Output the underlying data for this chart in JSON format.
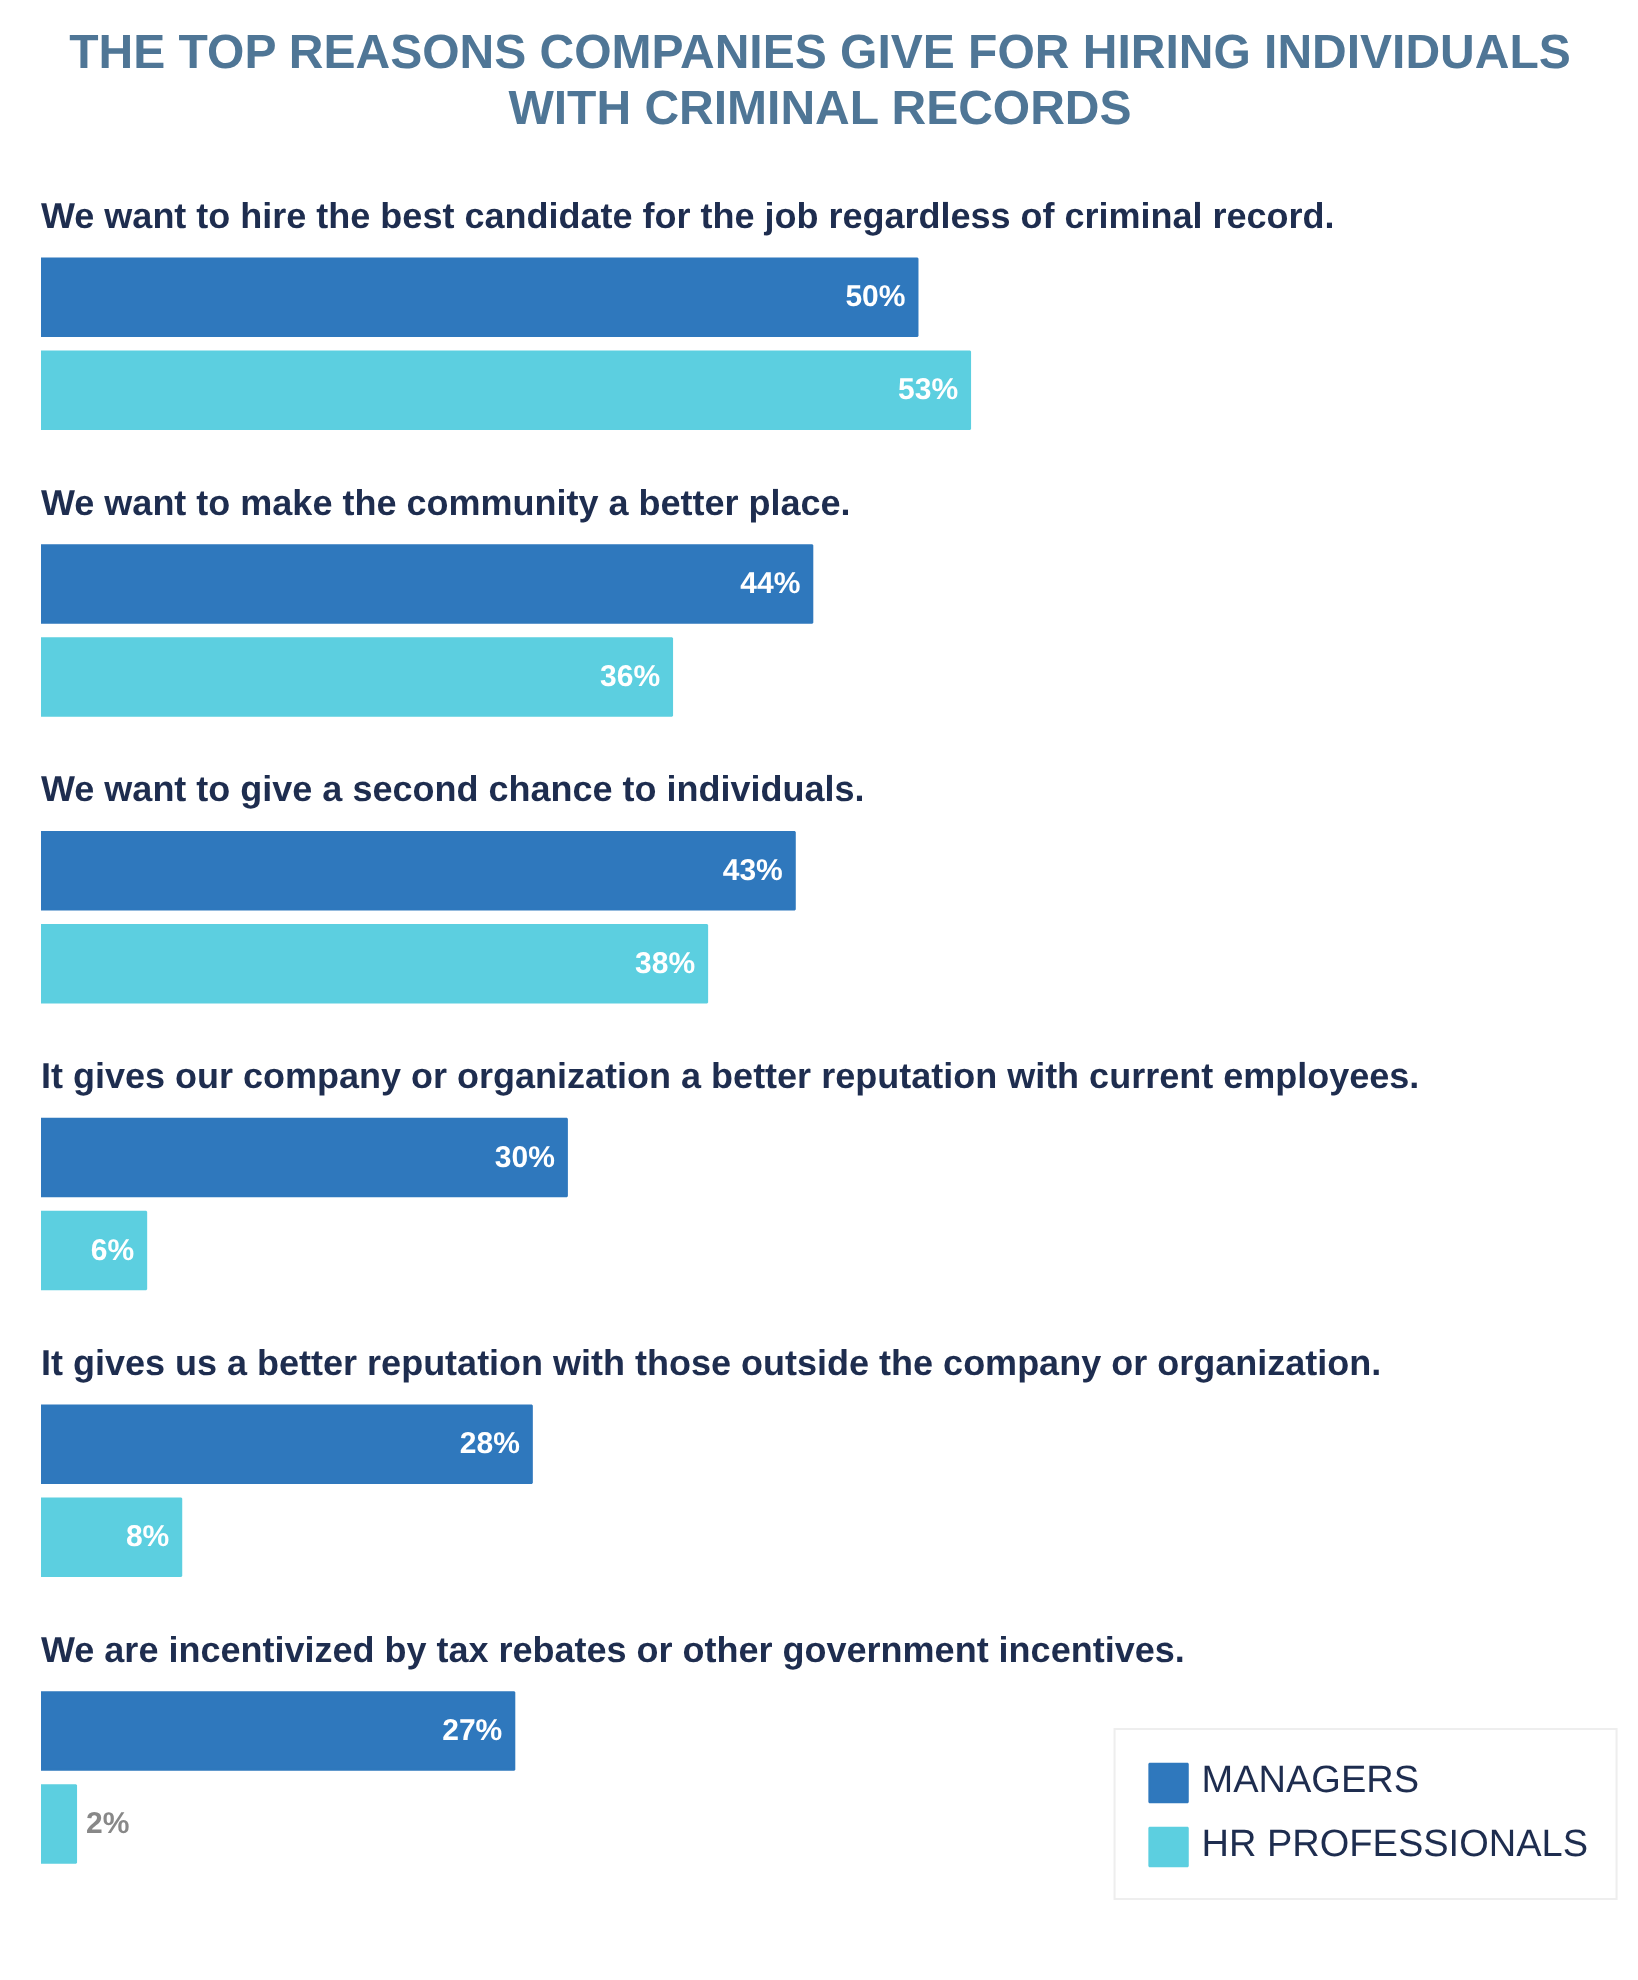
{
  "chart_data": {
    "type": "bar",
    "orientation": "horizontal",
    "title": "THE TOP REASONS COMPANIES GIVE FOR HIRING INDIVIDUALS WITH CRIMINAL RECORDS",
    "categories": [
      "We want to hire the best candidate for the job regardless of criminal record.",
      "We want to make the community a better place.",
      "We want to give a second chance to individuals.",
      "It gives our company or organization a better reputation with current employees.",
      "It gives us a better reputation with those outside the company or organization.",
      "We are incentivized by tax rebates or other government incentives."
    ],
    "series": [
      {
        "name": "MANAGERS",
        "color": "#2f78bd",
        "values": [
          50,
          44,
          43,
          30,
          28,
          27
        ],
        "value_labels": [
          "50%",
          "44%",
          "43%",
          "30%",
          "28%",
          "27%"
        ]
      },
      {
        "name": "HR PROFESSIONALS",
        "color": "#5ccfe0",
        "values": [
          53,
          36,
          38,
          6,
          8,
          2
        ],
        "value_labels": [
          "53%",
          "36%",
          "38%",
          "6%",
          "8%",
          "2%"
        ]
      }
    ],
    "legend": "bottom right",
    "grid": false
  }
}
